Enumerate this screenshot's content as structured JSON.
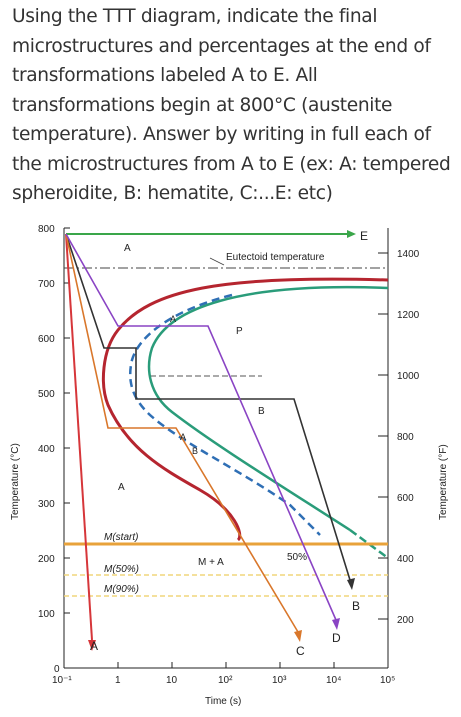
{
  "question": {
    "lines": [
      "Using the TTT diagram, indicate the final",
      "microstructures and percentages at the end of",
      "transformations labeled A to E. All",
      "transformations begin at 800°C (austenite",
      "temperature). Answer by writing in full each of",
      "the microstructures from A to E (ex: A: tempered",
      "spheroidite, B: hematite, C:...E: etc)"
    ]
  },
  "diagram": {
    "y_label_left": "Temperature (°C)",
    "y_label_right": "Temperature (°F)",
    "x_label": "Time (s)",
    "y_ticks_c": [
      "800",
      "700",
      "600",
      "500",
      "400",
      "300",
      "200",
      "100",
      "0"
    ],
    "y_ticks_f": [
      "1400",
      "1200",
      "1000",
      "800",
      "600",
      "400",
      "200"
    ],
    "x_ticks": [
      "10⁻¹",
      "1",
      "10",
      "10²",
      "10³",
      "10⁴",
      "10⁵"
    ],
    "labels": {
      "eutectoid": "Eutectoid temperature",
      "m_start": "M(start)",
      "m50": "M(50%)",
      "m90": "M(90%)",
      "m_plus_a": "M + A",
      "fifty": "50%",
      "a": "A",
      "b": "B",
      "p": "P",
      "c": "C",
      "d": "D",
      "e": "E"
    },
    "colors": {
      "start_curve": "#b5252f",
      "finish_curve": "#2a9c7a",
      "dashed_50": "#2f6fb5",
      "path_a": "#d6363a",
      "path_b": "#333333",
      "path_c": "#d9772b",
      "path_d": "#8a44c4",
      "path_e": "#3aa64a",
      "m_start": "#e8a23a",
      "m_dashed": "#f1d67c"
    }
  }
}
